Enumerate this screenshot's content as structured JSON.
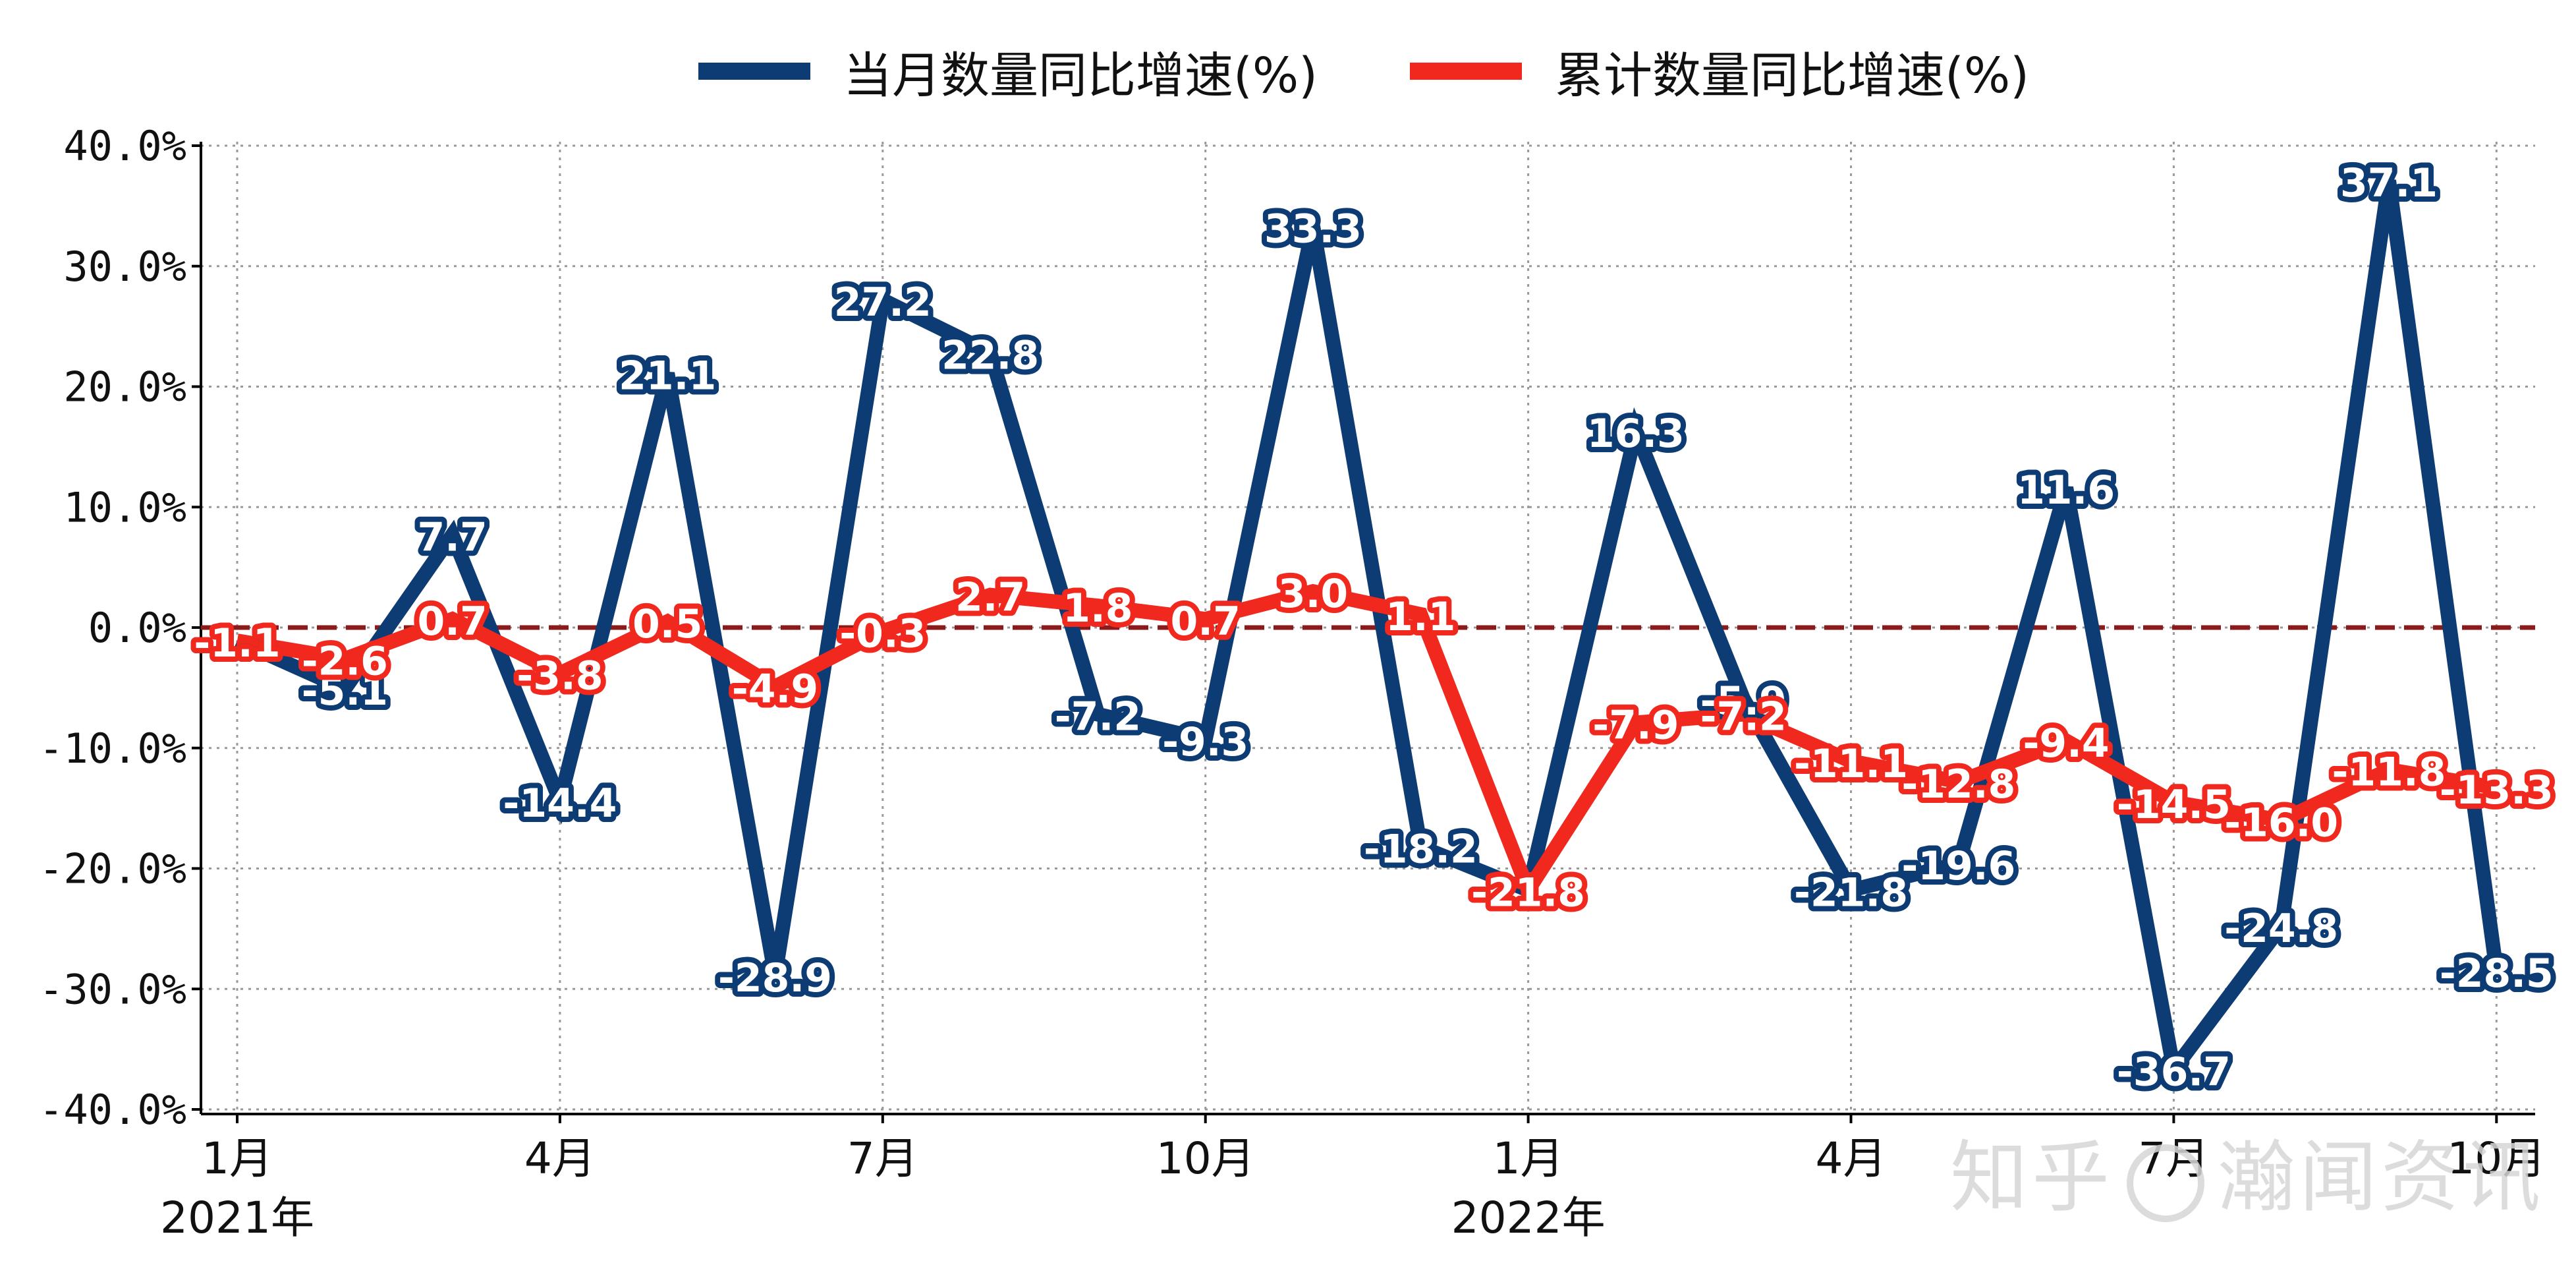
{
  "legend": {
    "series1_label": "当月数量同比增速(%)",
    "series2_label": "累计数量同比增速(%)"
  },
  "watermark": {
    "left_text": "知乎",
    "right_text": "瀚闻资讯"
  },
  "colors": {
    "monthly": "#0d3b73",
    "cumulative": "#f0281e",
    "zero_line": "#8b1a1a",
    "grid": "#999999",
    "text": "#111111"
  },
  "chart_data": {
    "type": "line",
    "title": "",
    "xlabel": "",
    "ylabel": "",
    "ylim": [
      -40,
      40
    ],
    "y_ticks": [
      "40.0%",
      "30.0%",
      "20.0%",
      "10.0%",
      "0.0%",
      "-10.0%",
      "-20.0%",
      "-30.0%",
      "-40.0%"
    ],
    "y_tick_values": [
      40,
      30,
      20,
      10,
      0,
      -10,
      -20,
      -30,
      -40
    ],
    "x": [
      "2021-01",
      "2021-02",
      "2021-03",
      "2021-04",
      "2021-05",
      "2021-06",
      "2021-07",
      "2021-08",
      "2021-09",
      "2021-10",
      "2021-11",
      "2021-12",
      "2022-01",
      "2022-02",
      "2022-03",
      "2022-04",
      "2022-05",
      "2022-06",
      "2022-07",
      "2022-08",
      "2022-09",
      "2022-10"
    ],
    "x_ticks": [
      {
        "index": 0,
        "label": "1月",
        "year": "2021年"
      },
      {
        "index": 3,
        "label": "4月",
        "year": ""
      },
      {
        "index": 6,
        "label": "7月",
        "year": ""
      },
      {
        "index": 9,
        "label": "10月",
        "year": ""
      },
      {
        "index": 12,
        "label": "1月",
        "year": "2022年"
      },
      {
        "index": 15,
        "label": "4月",
        "year": ""
      },
      {
        "index": 18,
        "label": "7月",
        "year": ""
      },
      {
        "index": 21,
        "label": "10月",
        "year": ""
      }
    ],
    "grid": true,
    "reference_line": 0,
    "legend_position": "top-center",
    "series": [
      {
        "name": "当月数量同比增速(%)",
        "values": [
          -1.1,
          -5.1,
          7.7,
          -14.4,
          21.1,
          -28.9,
          27.2,
          22.8,
          -7.2,
          -9.3,
          33.3,
          -18.2,
          -21.8,
          16.3,
          -5.9,
          -21.8,
          -19.6,
          11.6,
          -36.7,
          -24.8,
          37.1,
          -28.5
        ],
        "labels": [
          "-1.1",
          "-5.1",
          "7.7",
          "-14.4",
          "21.1",
          "-28.9",
          "27.2",
          "22.8",
          "-7.2",
          "-9.3",
          "33.3",
          "-18.2",
          "",
          "16.3",
          "-5.9",
          "-21.8",
          "-19.6",
          "11.6",
          "-36.7",
          "-24.8",
          "37.1",
          "-28.5"
        ]
      },
      {
        "name": "累计数量同比增速(%)",
        "values": [
          -1.1,
          -2.6,
          0.7,
          -3.8,
          0.5,
          -4.9,
          -0.3,
          2.7,
          1.8,
          0.7,
          3.0,
          1.1,
          -21.8,
          -7.9,
          -7.2,
          -11.1,
          -12.8,
          -9.4,
          -14.5,
          -16.0,
          -11.8,
          -13.3
        ],
        "labels": [
          "-1.1",
          "-2.6",
          "0.7",
          "-3.8",
          "0.5",
          "-4.9",
          "-0.3",
          "2.7",
          "1.8",
          "0.7",
          "3.0",
          "1.1",
          "-21.8",
          "-7.9",
          "-7.2",
          "-11.1",
          "-12.8",
          "-9.4",
          "-14.5",
          "-16.0",
          "-11.8",
          "-13.3"
        ]
      }
    ]
  }
}
